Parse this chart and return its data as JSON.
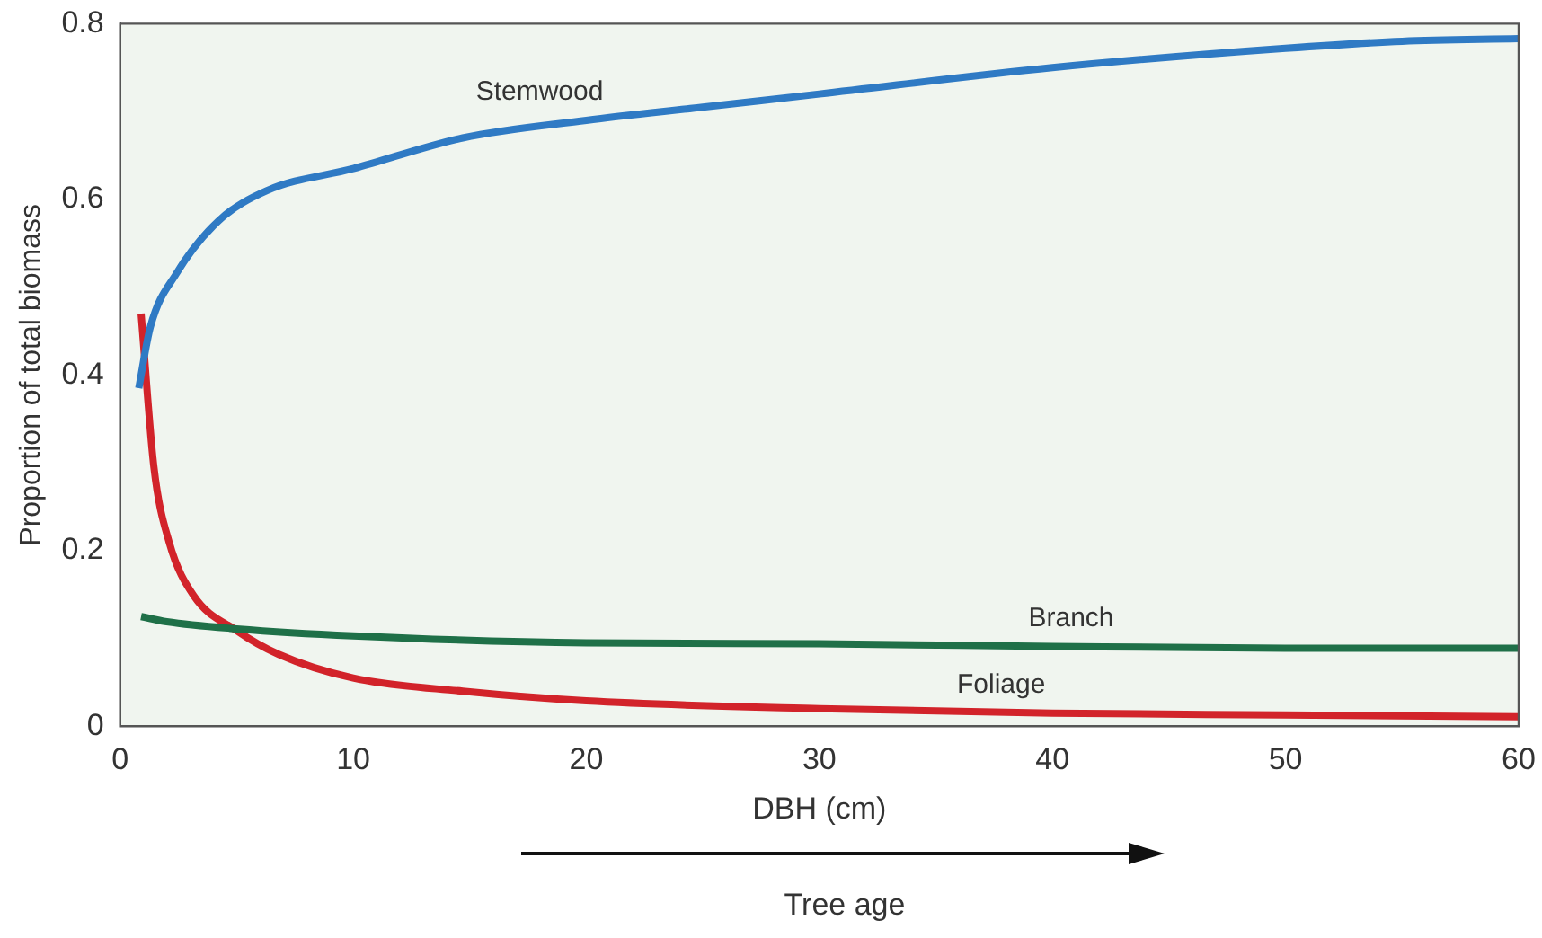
{
  "chart_data": {
    "type": "line",
    "xlabel": "DBH (cm)",
    "ylabel": "Proportion of total biomass",
    "xlim": [
      0,
      60
    ],
    "xticks": [
      0,
      10,
      20,
      30,
      40,
      50,
      60
    ],
    "ylim": [
      0,
      0.8
    ],
    "yticks": [
      0,
      0.2,
      0.4,
      0.6,
      0.8
    ],
    "grid": false,
    "legend": false,
    "marker": "none",
    "line_style": "solid",
    "annotations": [
      "Tree age"
    ],
    "series": [
      {
        "name": "Stemwood",
        "color": "#2f7ac4",
        "x": [
          0.8,
          1.3,
          2.4,
          4.2,
          6.3,
          10,
          14.7,
          20,
          25,
          30,
          40,
          50,
          55,
          60
        ],
        "values": [
          0.385,
          0.455,
          0.515,
          0.575,
          0.61,
          0.635,
          0.67,
          0.69,
          0.705,
          0.72,
          0.75,
          0.772,
          0.78,
          0.783
        ]
      },
      {
        "name": "Branch",
        "color": "#1f7048",
        "x": [
          0.9,
          2,
          5,
          10,
          20,
          30,
          40,
          50,
          60
        ],
        "values": [
          0.125,
          0.119,
          0.111,
          0.103,
          0.095,
          0.094,
          0.091,
          0.089,
          0.089
        ]
      },
      {
        "name": "Foliage",
        "color": "#d2232a",
        "x": [
          0.9,
          1.45,
          2.1,
          3.15,
          5,
          6.8,
          10,
          14.7,
          20,
          30,
          40,
          50,
          60
        ],
        "values": [
          0.47,
          0.295,
          0.21,
          0.149,
          0.109,
          0.082,
          0.055,
          0.04,
          0.029,
          0.02,
          0.015,
          0.013,
          0.011
        ]
      }
    ]
  }
}
